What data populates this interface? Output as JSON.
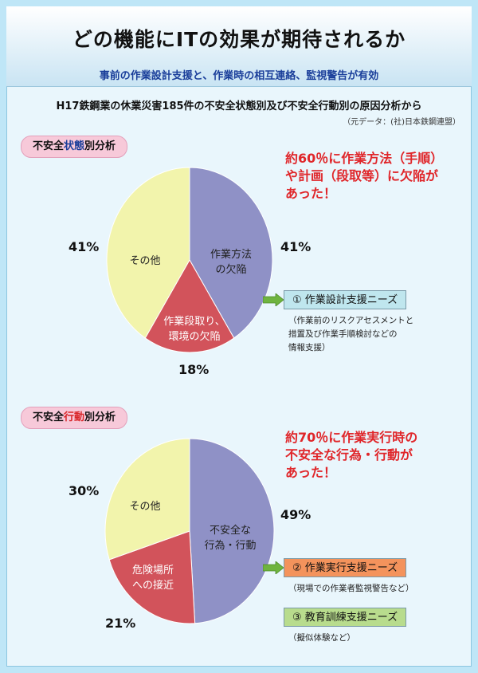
{
  "header": {
    "title": "どの機能にITの効果が期待されるか",
    "subtitle": "事前の作業設計支援と、作業時の相互連絡、監視警告が有効"
  },
  "analysis": {
    "heading": "H17鉄鋼業の休業災害185件の不安全状態別及び不安全行動別の原因分析から",
    "source": "（元データ：(社)日本鉄鋼連盟）"
  },
  "colors": {
    "slice_blue": "#8f91c6",
    "slice_red": "#d2535b",
    "slice_yellow": "#f2f4ac",
    "arrow_green": "#6fb43f",
    "box_blue": "#bfe6ee",
    "box_orange": "#f4935c",
    "box_green": "#b8dc8d"
  },
  "state_section": {
    "label_pre": "不安全",
    "label_hl": "状態",
    "label_post": "別分析",
    "headline_lines": [
      "約60％に作業方法（手順）",
      "や計画（段取等）に欠陥が",
      "あった！"
    ],
    "slices": [
      {
        "label_lines": [
          "作業方法",
          "の欠陥"
        ],
        "value": 41,
        "pct_label": "41%"
      },
      {
        "label_lines": [
          "作業段取り、",
          "環境の欠陥"
        ],
        "value": 18,
        "pct_label": "18%"
      },
      {
        "label_lines": [
          "その他"
        ],
        "value": 41,
        "pct_label": "41%"
      }
    ],
    "needs": [
      {
        "text": "①  作業設計支援ニーズ",
        "note_lines": [
          "（作業前のリスクアセスメントと",
          "措置及び作業手順検討などの",
          "情報支援）"
        ]
      }
    ]
  },
  "action_section": {
    "label_pre": "不安全",
    "label_hl": "行動",
    "label_post": "別分析",
    "headline_lines": [
      "約70％に作業実行時の",
      "不安全な行為・行動が",
      "あった！"
    ],
    "slices": [
      {
        "label_lines": [
          "不安全な",
          "行為・行動"
        ],
        "value": 49,
        "pct_label": "49%"
      },
      {
        "label_lines": [
          "危険場所",
          "への接近"
        ],
        "value": 21,
        "pct_label": "21%"
      },
      {
        "label_lines": [
          "その他"
        ],
        "value": 30,
        "pct_label": "30%"
      }
    ],
    "needs": [
      {
        "text": "②  作業実行支援ニーズ",
        "note_lines": [
          "（現場での作業者監視警告など）"
        ]
      },
      {
        "text": "③  教育訓練支援ニーズ",
        "note_lines": [
          "（擬似体験など）"
        ]
      }
    ]
  }
}
